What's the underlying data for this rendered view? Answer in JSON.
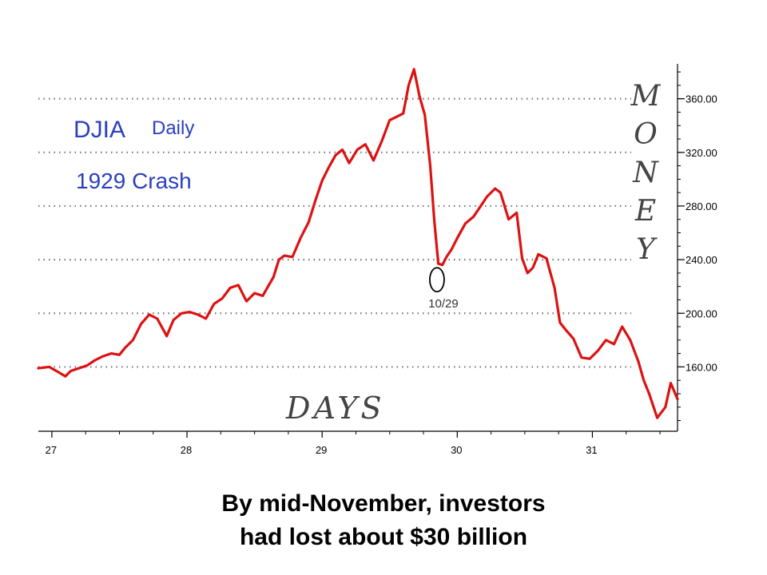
{
  "chart_data": {
    "type": "line",
    "title": "DJIA",
    "subtitle": "Daily",
    "annotation_title": "1929 Crash",
    "ylabel": "MONEY",
    "xlabel": "DAYS",
    "x_ticks": [
      "27",
      "28",
      "29",
      "30",
      "31"
    ],
    "y_ticks": [
      "160.00",
      "200.00",
      "240.00",
      "280.00",
      "320.00",
      "360.00"
    ],
    "y_tick_values": [
      160,
      200,
      240,
      280,
      320,
      360
    ],
    "xlim": [
      26.9,
      31.63
    ],
    "ylim": [
      112,
      386
    ],
    "grid": true,
    "annotations": [
      {
        "label": "10/29",
        "x": 29.85,
        "y": 231
      }
    ],
    "series": [
      {
        "color": "#dd1111",
        "x": [
          26.9,
          26.98,
          27.05,
          27.1,
          27.14,
          27.2,
          27.26,
          27.32,
          27.38,
          27.44,
          27.5,
          27.54,
          27.6,
          27.66,
          27.72,
          27.78,
          27.85,
          27.9,
          27.96,
          28.02,
          28.08,
          28.14,
          28.2,
          28.26,
          28.32,
          28.38,
          28.44,
          28.5,
          28.56,
          28.6,
          28.64,
          28.68,
          28.72,
          28.78,
          28.84,
          28.9,
          28.95,
          29.0,
          29.05,
          29.1,
          29.15,
          29.2,
          29.26,
          29.32,
          29.38,
          29.44,
          29.5,
          29.54,
          29.6,
          29.64,
          29.68,
          29.72,
          29.76,
          29.8,
          29.83,
          29.86,
          29.89,
          29.92,
          29.96,
          30.0,
          30.06,
          30.12,
          30.18,
          30.22,
          30.28,
          30.32,
          30.38,
          30.44,
          30.48,
          30.52,
          30.56,
          30.6,
          30.66,
          30.72,
          30.76,
          30.8,
          30.86,
          30.92,
          30.98,
          31.04,
          31.1,
          31.16,
          31.22,
          31.28,
          31.34,
          31.38,
          31.42,
          31.48,
          31.54,
          31.58,
          31.63
        ],
        "y": [
          159,
          160,
          156,
          153,
          157,
          159,
          161,
          165,
          168,
          170,
          169,
          174,
          180,
          192,
          199,
          196,
          183,
          195,
          200,
          201,
          199,
          196,
          207,
          211,
          219,
          221,
          209,
          215,
          213,
          220,
          227,
          240,
          243,
          242,
          256,
          268,
          284,
          299,
          309,
          318,
          322,
          312,
          322,
          326,
          314,
          328,
          344,
          346,
          349,
          370,
          382,
          362,
          348,
          310,
          269,
          237,
          236,
          242,
          248,
          256,
          267,
          272,
          281,
          287,
          293,
          290,
          270,
          275,
          241,
          230,
          234,
          244,
          241,
          219,
          193,
          188,
          181,
          167,
          166,
          172,
          180,
          177,
          190,
          180,
          164,
          150,
          140,
          122,
          130,
          148,
          136
        ]
      }
    ]
  },
  "caption": {
    "line1": "By mid-November, investors",
    "line2": "had lost about $30 billion"
  }
}
